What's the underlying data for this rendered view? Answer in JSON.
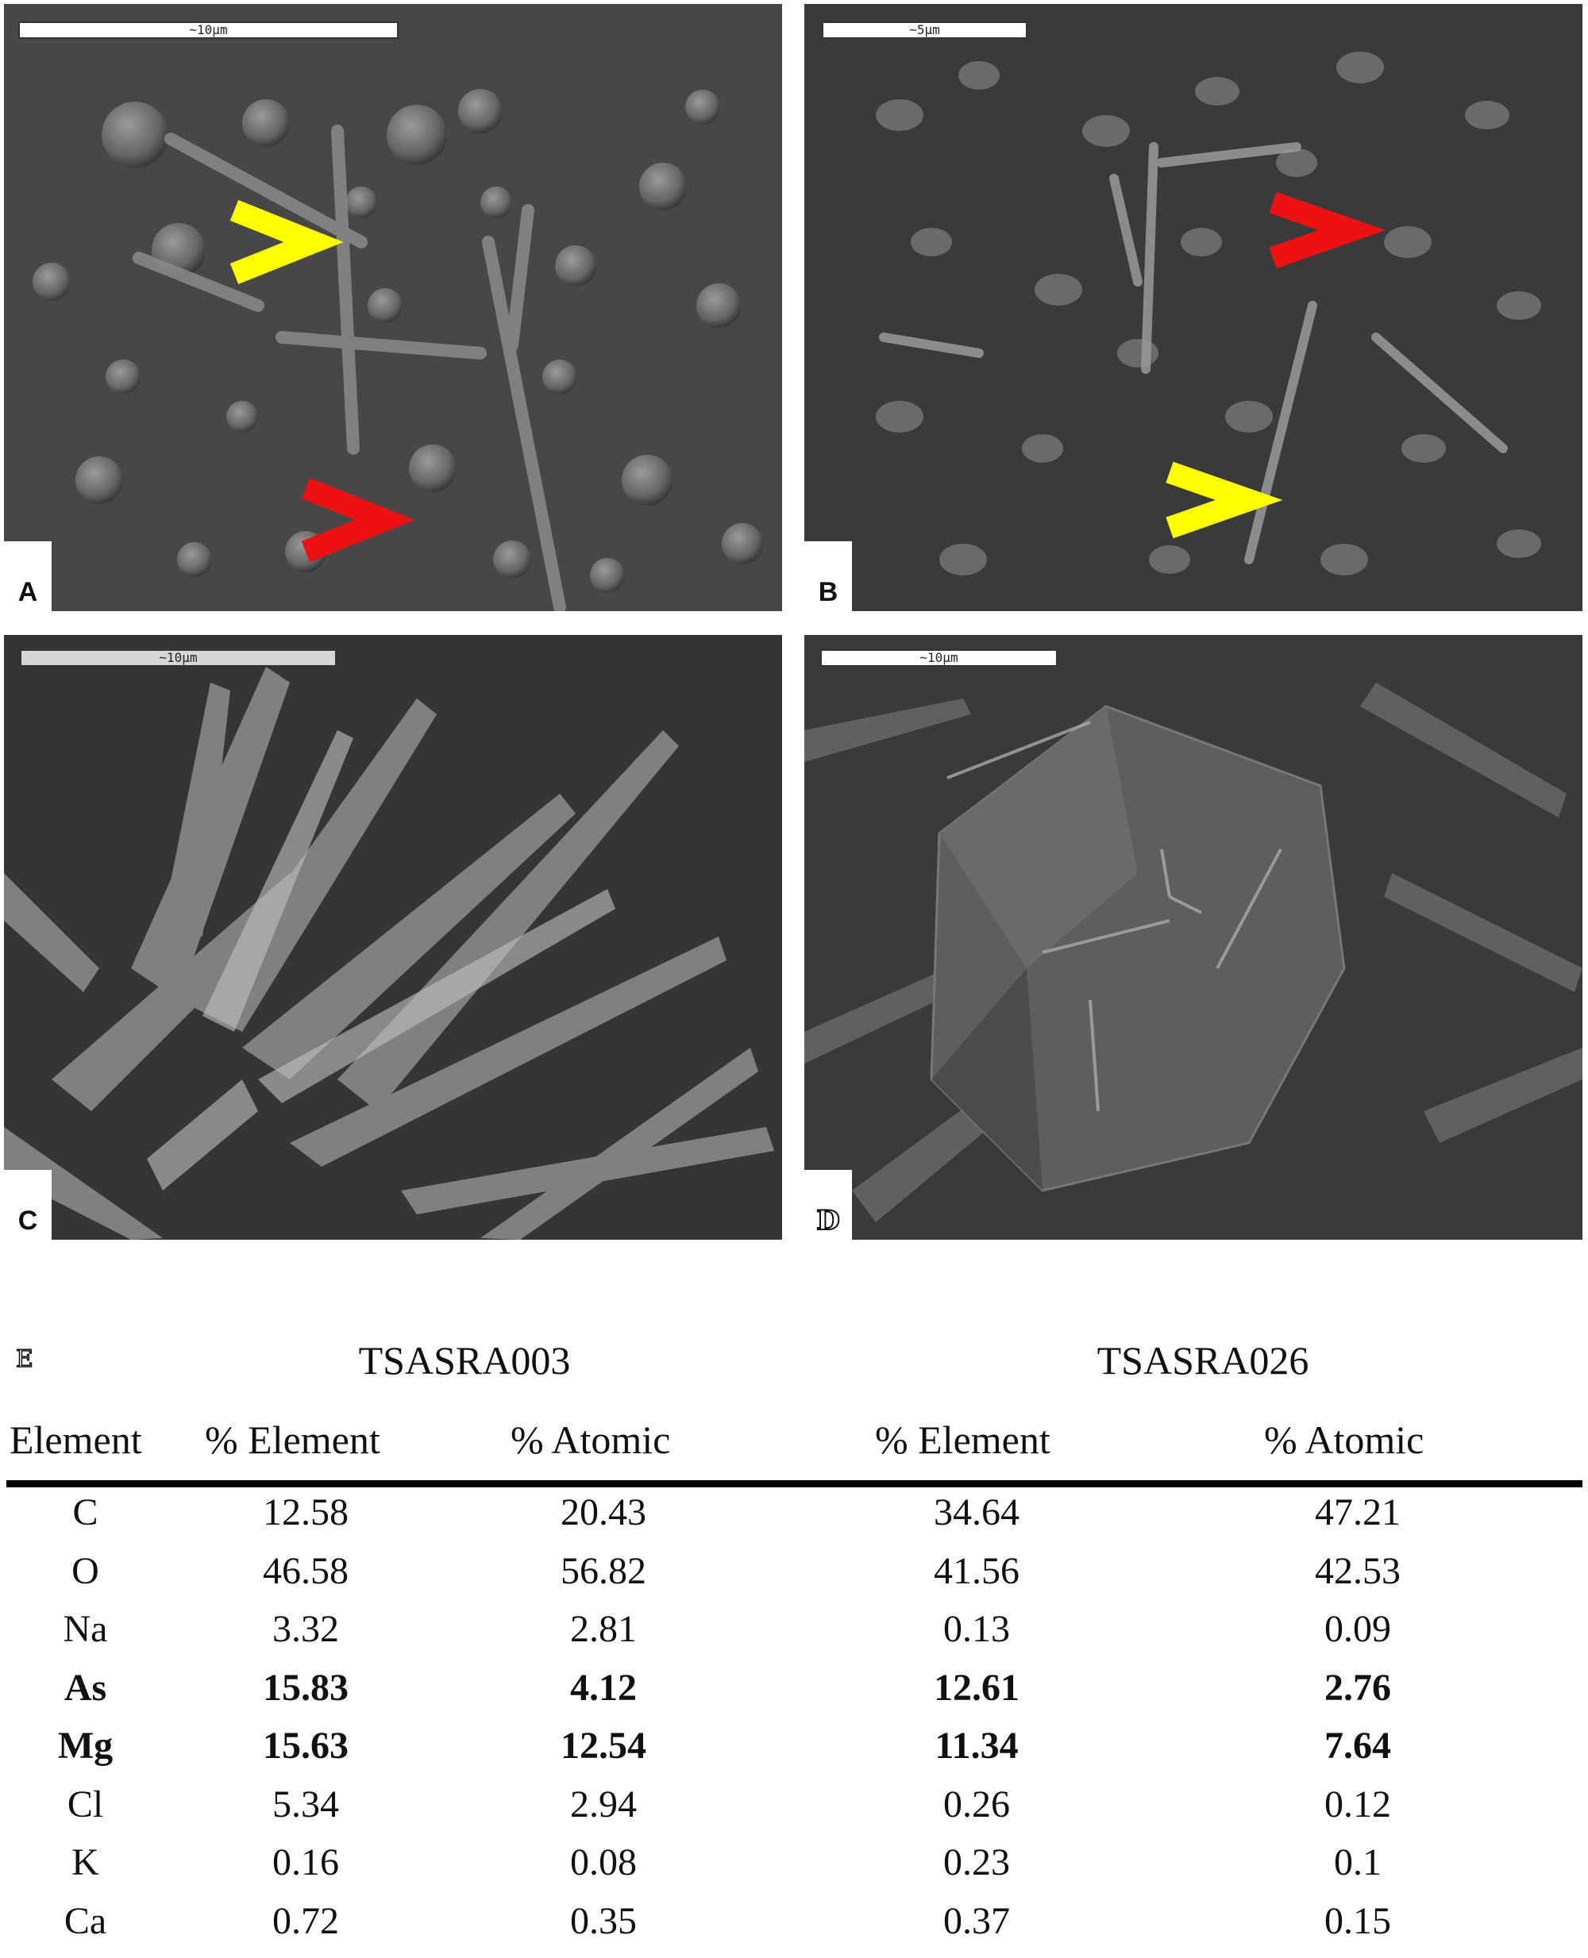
{
  "panels": [
    {
      "label": "A",
      "scale": "~10µm"
    },
    {
      "label": "B",
      "scale": "~5µm"
    },
    {
      "label": "C",
      "scale": "~10µm"
    },
    {
      "label": "D",
      "scale": "~10µm"
    }
  ],
  "arrow_colors": {
    "yellow": "#ffff00",
    "red": "#ee1111"
  },
  "table": {
    "label": "E",
    "samples": [
      "TSASRA003",
      "TSASRA026"
    ],
    "headers": [
      "Element",
      "% Element",
      "% Atomic",
      "% Element",
      "% Atomic"
    ],
    "rows": [
      {
        "element": "C",
        "s1_element": "12.58",
        "s1_atomic": "20.43",
        "s2_element": "34.64",
        "s2_atomic": "47.21",
        "bold": false
      },
      {
        "element": "O",
        "s1_element": "46.58",
        "s1_atomic": "56.82",
        "s2_element": "41.56",
        "s2_atomic": "42.53",
        "bold": false
      },
      {
        "element": "Na",
        "s1_element": "3.32",
        "s1_atomic": "2.81",
        "s2_element": "0.13",
        "s2_atomic": "0.09",
        "bold": false
      },
      {
        "element": "As",
        "s1_element": "15.83",
        "s1_atomic": "4.12",
        "s2_element": "12.61",
        "s2_atomic": "2.76",
        "bold": true
      },
      {
        "element": "Mg",
        "s1_element": "15.63",
        "s1_atomic": "12.54",
        "s2_element": "11.34",
        "s2_atomic": "7.64",
        "bold": true
      },
      {
        "element": "Cl",
        "s1_element": "5.34",
        "s1_atomic": "2.94",
        "s2_element": "0.26",
        "s2_atomic": "0.12",
        "bold": false
      },
      {
        "element": "K",
        "s1_element": "0.16",
        "s1_atomic": "0.08",
        "s2_element": "0.23",
        "s2_atomic": "0.1",
        "bold": false
      },
      {
        "element": "Ca",
        "s1_element": "0.72",
        "s1_atomic": "0.35",
        "s2_element": "0.37",
        "s2_atomic": "0.15",
        "bold": false
      }
    ]
  }
}
